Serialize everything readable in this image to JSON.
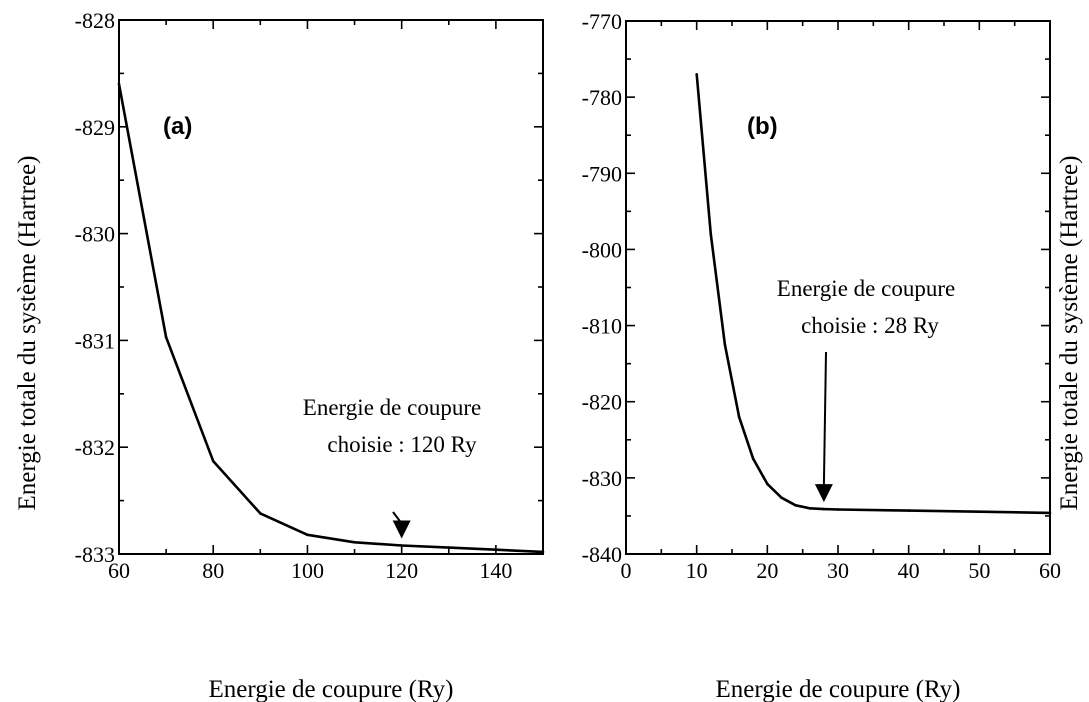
{
  "chart_data": [
    {
      "type": "line",
      "panel_label": "(a)",
      "xlabel": "Energie de coupure (Ry)",
      "ylabel": "Energie totale du système (Hartree)",
      "xlim": [
        60,
        150
      ],
      "ylim": [
        -833,
        -828
      ],
      "xticks": [
        "60",
        "80",
        "100",
        "120",
        "140"
      ],
      "yticks": [
        "-828",
        "-829",
        "-830",
        "-831",
        "-832",
        "-833"
      ],
      "x": [
        60,
        70,
        80,
        90,
        100,
        110,
        120,
        130,
        140,
        150
      ],
      "y": [
        -828.6,
        -830.97,
        -832.13,
        -832.62,
        -832.82,
        -832.89,
        -832.92,
        -832.94,
        -832.96,
        -832.98
      ],
      "annotation": {
        "lines": [
          "Energie de coupure",
          "choisie : 120 Ry"
        ],
        "arrow_to": [
          120,
          -832.92
        ]
      },
      "ylabel_side": "left"
    },
    {
      "type": "line",
      "panel_label": "(b)",
      "xlabel": "Energie de coupure (Ry)",
      "ylabel": "Energie totale du système (Hartree)",
      "xlim": [
        0,
        60
      ],
      "ylim": [
        -840,
        -770
      ],
      "xticks": [
        "0",
        "10",
        "20",
        "30",
        "40",
        "50",
        "60"
      ],
      "yticks": [
        "-770",
        "-780",
        "-790",
        "-800",
        "-810",
        "-820",
        "-830",
        "-840"
      ],
      "x": [
        10,
        12,
        14,
        16,
        18,
        20,
        22,
        24,
        26,
        28,
        30,
        40,
        50,
        60
      ],
      "y": [
        -777,
        -798,
        -812.5,
        -822,
        -827.5,
        -830.8,
        -832.6,
        -833.6,
        -834.0,
        -834.1,
        -834.15,
        -834.3,
        -834.45,
        -834.6
      ],
      "annotation": {
        "lines": [
          "Energie de coupure",
          "choisie : 28 Ry"
        ],
        "arrow_to": [
          28,
          -834.1
        ]
      },
      "ylabel_side": "right"
    }
  ]
}
